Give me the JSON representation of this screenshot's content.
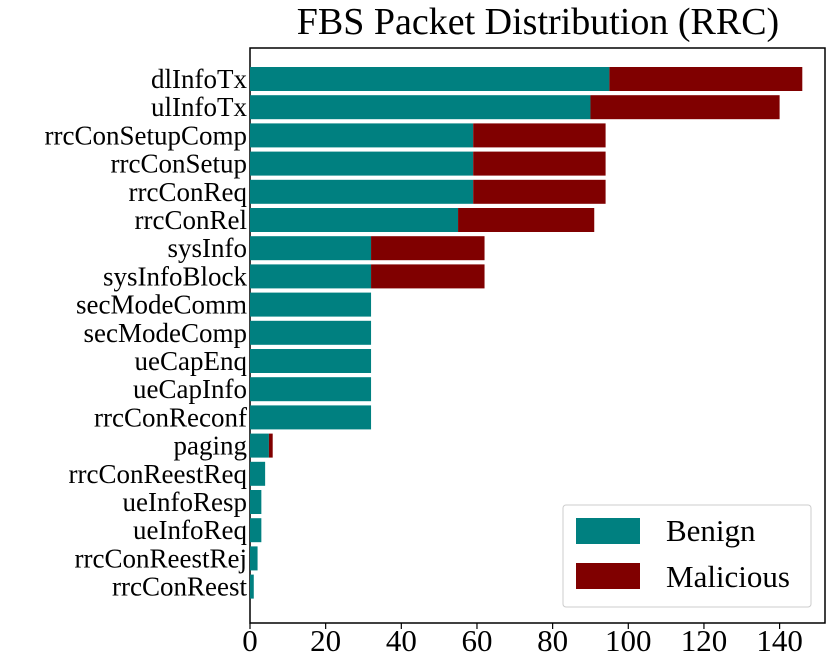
{
  "chart_data": {
    "type": "bar",
    "orientation": "horizontal",
    "stacked": true,
    "title": "FBS Packet Distribution (RRC)",
    "xlabel": "",
    "ylabel": "",
    "xlim": [
      0,
      152
    ],
    "xticks": [
      0,
      20,
      40,
      60,
      80,
      100,
      120,
      140
    ],
    "categories": [
      "dlInfoTx",
      "ulInfoTx",
      "rrcConSetupComp",
      "rrcConSetup",
      "rrcConReq",
      "rrcConRel",
      "sysInfo",
      "sysInfoBlock",
      "secModeComm",
      "secModeComp",
      "ueCapEnq",
      "ueCapInfo",
      "rrcConReconf",
      "paging",
      "rrcConReestReq",
      "ueInfoResp",
      "ueInfoReq",
      "rrcConReestRej",
      "rrcConReest"
    ],
    "series": [
      {
        "name": "Benign",
        "color": "#008080",
        "values": [
          95,
          90,
          59,
          59,
          59,
          55,
          32,
          32,
          32,
          32,
          32,
          32,
          32,
          5,
          4,
          3,
          3,
          2,
          1
        ]
      },
      {
        "name": "Malicious",
        "color": "#800000",
        "values": [
          51,
          50,
          35,
          35,
          35,
          36,
          30,
          30,
          0,
          0,
          0,
          0,
          0,
          1,
          0,
          0,
          0,
          0,
          0
        ]
      }
    ],
    "legend_position": "lower-right",
    "grid": false
  }
}
